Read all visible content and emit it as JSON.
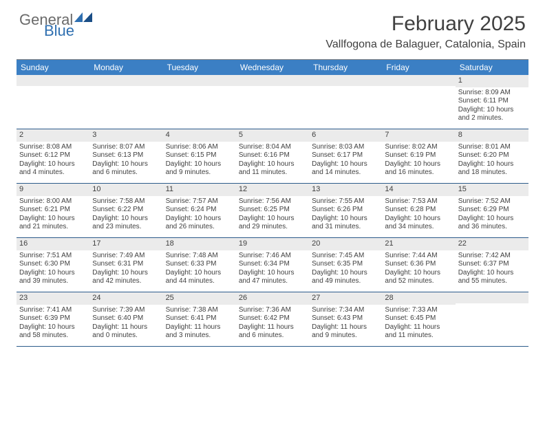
{
  "logo": {
    "general": "General",
    "blue": "Blue"
  },
  "title": "February 2025",
  "location": "Vallfogona de Balaguer, Catalonia, Spain",
  "colors": {
    "header_bg": "#3b7fc4",
    "header_text": "#ffffff",
    "daynum_bg": "#ebebeb",
    "border": "#2a5a8a",
    "logo_blue": "#2f6fb0",
    "logo_gray": "#6a6a6a",
    "text": "#404040",
    "background": "#ffffff"
  },
  "weekdays": [
    "Sunday",
    "Monday",
    "Tuesday",
    "Wednesday",
    "Thursday",
    "Friday",
    "Saturday"
  ],
  "weeks": [
    [
      null,
      null,
      null,
      null,
      null,
      null,
      {
        "n": "1",
        "sunrise": "8:09 AM",
        "sunset": "6:11 PM",
        "daylight": "10 hours and 2 minutes."
      }
    ],
    [
      {
        "n": "2",
        "sunrise": "8:08 AM",
        "sunset": "6:12 PM",
        "daylight": "10 hours and 4 minutes."
      },
      {
        "n": "3",
        "sunrise": "8:07 AM",
        "sunset": "6:13 PM",
        "daylight": "10 hours and 6 minutes."
      },
      {
        "n": "4",
        "sunrise": "8:06 AM",
        "sunset": "6:15 PM",
        "daylight": "10 hours and 9 minutes."
      },
      {
        "n": "5",
        "sunrise": "8:04 AM",
        "sunset": "6:16 PM",
        "daylight": "10 hours and 11 minutes."
      },
      {
        "n": "6",
        "sunrise": "8:03 AM",
        "sunset": "6:17 PM",
        "daylight": "10 hours and 14 minutes."
      },
      {
        "n": "7",
        "sunrise": "8:02 AM",
        "sunset": "6:19 PM",
        "daylight": "10 hours and 16 minutes."
      },
      {
        "n": "8",
        "sunrise": "8:01 AM",
        "sunset": "6:20 PM",
        "daylight": "10 hours and 18 minutes."
      }
    ],
    [
      {
        "n": "9",
        "sunrise": "8:00 AM",
        "sunset": "6:21 PM",
        "daylight": "10 hours and 21 minutes."
      },
      {
        "n": "10",
        "sunrise": "7:58 AM",
        "sunset": "6:22 PM",
        "daylight": "10 hours and 23 minutes."
      },
      {
        "n": "11",
        "sunrise": "7:57 AM",
        "sunset": "6:24 PM",
        "daylight": "10 hours and 26 minutes."
      },
      {
        "n": "12",
        "sunrise": "7:56 AM",
        "sunset": "6:25 PM",
        "daylight": "10 hours and 29 minutes."
      },
      {
        "n": "13",
        "sunrise": "7:55 AM",
        "sunset": "6:26 PM",
        "daylight": "10 hours and 31 minutes."
      },
      {
        "n": "14",
        "sunrise": "7:53 AM",
        "sunset": "6:28 PM",
        "daylight": "10 hours and 34 minutes."
      },
      {
        "n": "15",
        "sunrise": "7:52 AM",
        "sunset": "6:29 PM",
        "daylight": "10 hours and 36 minutes."
      }
    ],
    [
      {
        "n": "16",
        "sunrise": "7:51 AM",
        "sunset": "6:30 PM",
        "daylight": "10 hours and 39 minutes."
      },
      {
        "n": "17",
        "sunrise": "7:49 AM",
        "sunset": "6:31 PM",
        "daylight": "10 hours and 42 minutes."
      },
      {
        "n": "18",
        "sunrise": "7:48 AM",
        "sunset": "6:33 PM",
        "daylight": "10 hours and 44 minutes."
      },
      {
        "n": "19",
        "sunrise": "7:46 AM",
        "sunset": "6:34 PM",
        "daylight": "10 hours and 47 minutes."
      },
      {
        "n": "20",
        "sunrise": "7:45 AM",
        "sunset": "6:35 PM",
        "daylight": "10 hours and 49 minutes."
      },
      {
        "n": "21",
        "sunrise": "7:44 AM",
        "sunset": "6:36 PM",
        "daylight": "10 hours and 52 minutes."
      },
      {
        "n": "22",
        "sunrise": "7:42 AM",
        "sunset": "6:37 PM",
        "daylight": "10 hours and 55 minutes."
      }
    ],
    [
      {
        "n": "23",
        "sunrise": "7:41 AM",
        "sunset": "6:39 PM",
        "daylight": "10 hours and 58 minutes."
      },
      {
        "n": "24",
        "sunrise": "7:39 AM",
        "sunset": "6:40 PM",
        "daylight": "11 hours and 0 minutes."
      },
      {
        "n": "25",
        "sunrise": "7:38 AM",
        "sunset": "6:41 PM",
        "daylight": "11 hours and 3 minutes."
      },
      {
        "n": "26",
        "sunrise": "7:36 AM",
        "sunset": "6:42 PM",
        "daylight": "11 hours and 6 minutes."
      },
      {
        "n": "27",
        "sunrise": "7:34 AM",
        "sunset": "6:43 PM",
        "daylight": "11 hours and 9 minutes."
      },
      {
        "n": "28",
        "sunrise": "7:33 AM",
        "sunset": "6:45 PM",
        "daylight": "11 hours and 11 minutes."
      },
      null
    ]
  ],
  "labels": {
    "sunrise": "Sunrise:",
    "sunset": "Sunset:",
    "daylight": "Daylight:"
  }
}
